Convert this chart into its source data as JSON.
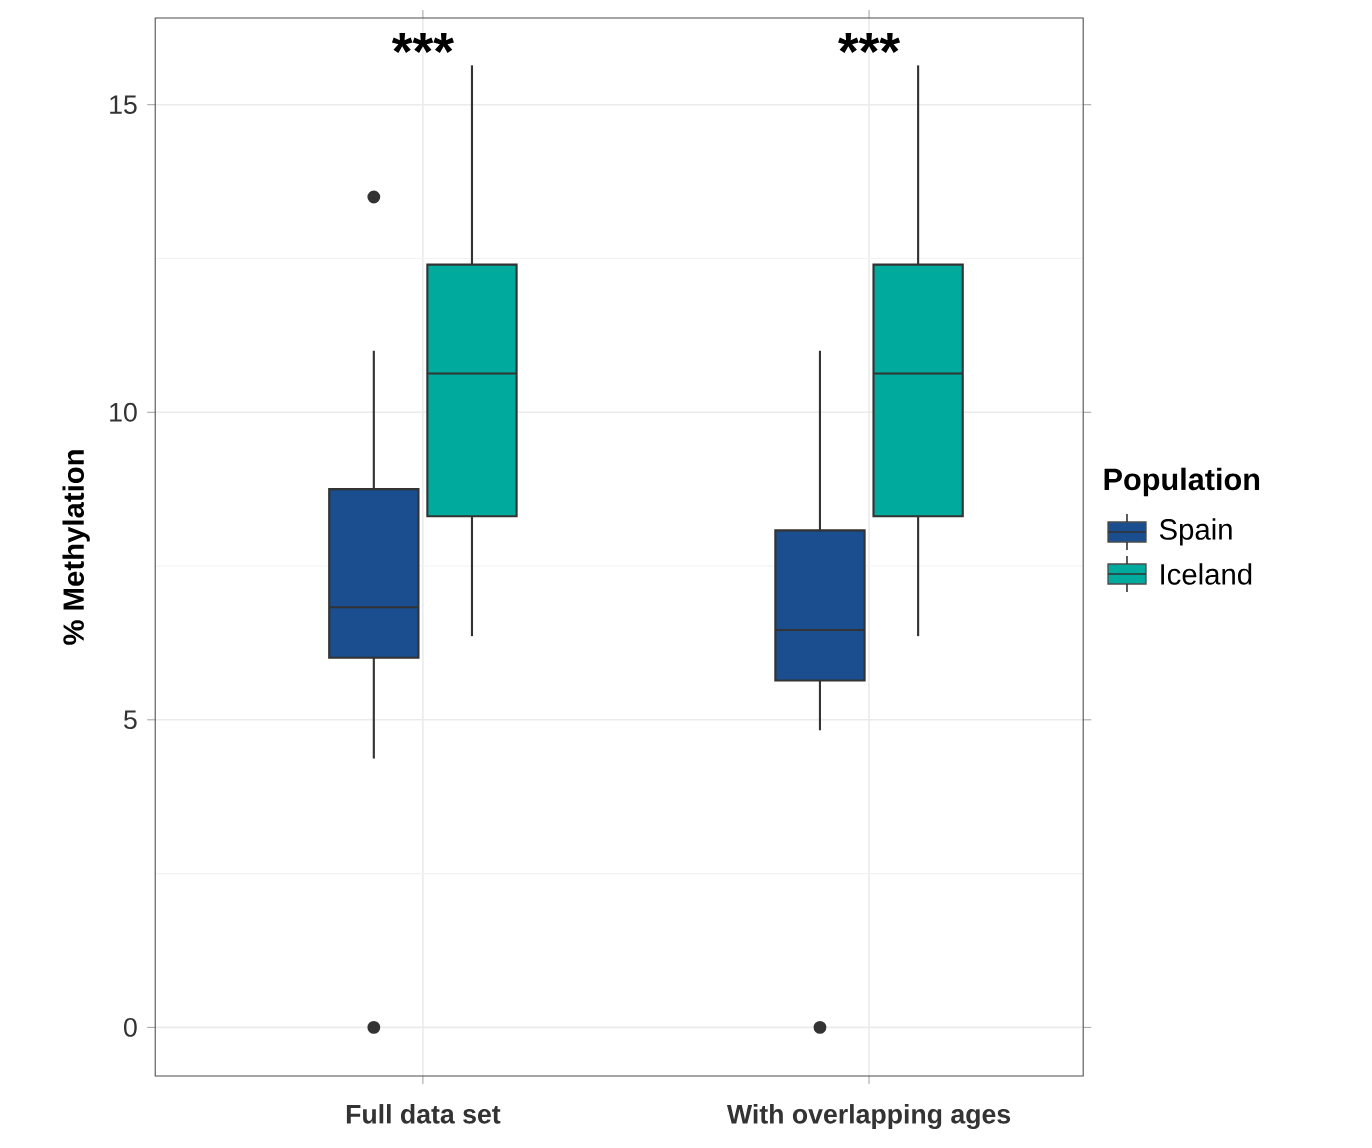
{
  "chart_data": {
    "type": "box",
    "ylabel": "% Methylation",
    "legend_title": "Population",
    "categories": [
      "Full data set",
      "With overlapping ages"
    ],
    "series": [
      {
        "name": "Spain",
        "color": "#1a4e8f",
        "boxes": [
          {
            "low": 4.37,
            "q1": 6.01,
            "median": 6.83,
            "q3": 8.75,
            "high": 11.0,
            "outliers": [
              13.5,
              0
            ]
          },
          {
            "low": 4.83,
            "q1": 5.64,
            "median": 6.46,
            "q3": 8.08,
            "high": 11.0,
            "outliers": [
              0
            ]
          }
        ]
      },
      {
        "name": "Iceland",
        "color": "#00ab9d",
        "boxes": [
          {
            "low": 6.36,
            "q1": 8.31,
            "median": 10.63,
            "q3": 12.4,
            "high": 15.64
          },
          {
            "low": 6.36,
            "q1": 8.31,
            "median": 10.63,
            "q3": 12.4,
            "high": 15.64
          }
        ]
      }
    ],
    "annotations": [
      "***",
      "***"
    ],
    "ylim": [
      -0.79,
      16.41
    ],
    "yticks": [
      0,
      5,
      10,
      15
    ],
    "grid": true,
    "legend": "right"
  }
}
